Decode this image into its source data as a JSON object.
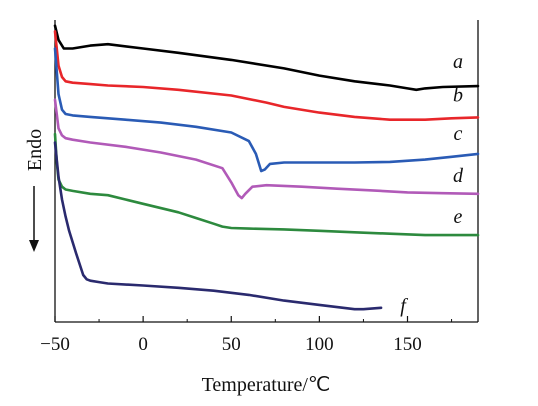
{
  "chart_data": {
    "type": "line",
    "title": "",
    "xlabel": "Temperature/℃",
    "ylabel": "Endo",
    "ylabel_arrow": "down",
    "xlim": [
      -50,
      190
    ],
    "x_ticks": [
      -50,
      0,
      50,
      100,
      150
    ],
    "y_ticks": [],
    "grid": false,
    "legend": "inline labels at right end of curves",
    "series": [
      {
        "name": "a",
        "color": "#000000",
        "x": [
          -50,
          -48,
          -45,
          -40,
          -30,
          -20,
          0,
          20,
          50,
          80,
          100,
          120,
          140,
          150,
          155,
          160,
          170,
          190
        ],
        "y": [
          6.4,
          5.9,
          5.6,
          5.6,
          5.7,
          5.75,
          5.6,
          5.45,
          5.2,
          4.9,
          4.65,
          4.45,
          4.3,
          4.2,
          4.15,
          4.2,
          4.25,
          4.28
        ]
      },
      {
        "name": "b",
        "color": "#e8262a",
        "x": [
          -50,
          -48,
          -46,
          -44,
          -40,
          -30,
          -20,
          0,
          20,
          50,
          70,
          80,
          100,
          120,
          140,
          160,
          175,
          190
        ],
        "y": [
          6.2,
          5.0,
          4.6,
          4.45,
          4.4,
          4.35,
          4.3,
          4.25,
          4.15,
          3.95,
          3.7,
          3.55,
          3.35,
          3.2,
          3.1,
          3.1,
          3.15,
          3.18
        ]
      },
      {
        "name": "c",
        "color": "#2a5bb5",
        "x": [
          -50,
          -48,
          -46,
          -44,
          -40,
          -30,
          -10,
          10,
          30,
          50,
          60,
          64,
          67,
          69,
          72,
          80,
          100,
          120,
          140,
          160,
          175,
          190
        ],
        "y": [
          5.6,
          4.0,
          3.45,
          3.3,
          3.25,
          3.2,
          3.1,
          3.0,
          2.85,
          2.65,
          2.35,
          1.9,
          1.3,
          1.35,
          1.55,
          1.6,
          1.6,
          1.6,
          1.62,
          1.7,
          1.8,
          1.9
        ]
      },
      {
        "name": "d",
        "color": "#b15ab8",
        "x": [
          -50,
          -48,
          -46,
          -44,
          -40,
          -30,
          -10,
          10,
          30,
          45,
          50,
          54,
          56,
          58,
          62,
          70,
          90,
          110,
          130,
          150,
          170,
          190
        ],
        "y": [
          3.8,
          2.8,
          2.55,
          2.45,
          2.4,
          2.3,
          2.15,
          1.95,
          1.7,
          1.4,
          0.9,
          0.45,
          0.35,
          0.5,
          0.75,
          0.8,
          0.75,
          0.68,
          0.62,
          0.55,
          0.52,
          0.5
        ]
      },
      {
        "name": "e",
        "color": "#2d8a3e",
        "x": [
          -50,
          -49,
          -48,
          -46,
          -44,
          -40,
          -30,
          -20,
          -10,
          0,
          20,
          30,
          40,
          45,
          50,
          60,
          80,
          100,
          120,
          140,
          160,
          190
        ],
        "y": [
          2.6,
          1.6,
          1.0,
          0.75,
          0.65,
          0.6,
          0.5,
          0.45,
          0.3,
          0.15,
          -0.15,
          -0.35,
          -0.55,
          -0.65,
          -0.7,
          -0.72,
          -0.75,
          -0.8,
          -0.85,
          -0.9,
          -0.95,
          -0.95
        ]
      },
      {
        "name": "f",
        "color": "#2a2a6e",
        "x": [
          -50,
          -48,
          -46,
          -44,
          -42,
          -38,
          -34,
          -32,
          -30,
          -25,
          -20,
          0,
          20,
          40,
          60,
          80,
          100,
          120,
          125,
          135
        ],
        "y": [
          2.3,
          1.1,
          0.3,
          -0.3,
          -0.8,
          -1.6,
          -2.35,
          -2.5,
          -2.55,
          -2.6,
          -2.65,
          -2.72,
          -2.8,
          -2.9,
          -3.05,
          -3.25,
          -3.4,
          -3.55,
          -3.55,
          -3.5
        ]
      }
    ]
  }
}
